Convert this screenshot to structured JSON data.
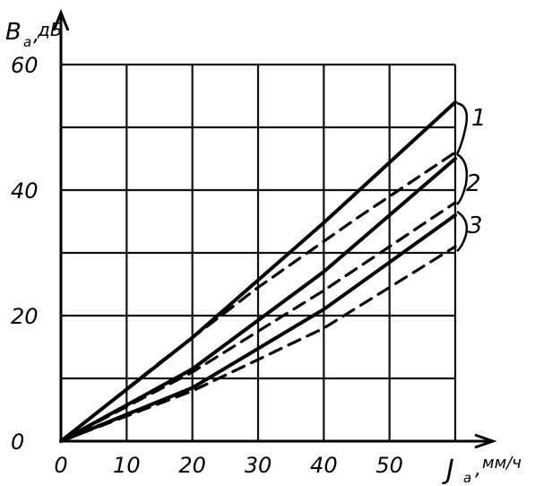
{
  "chart_data": {
    "type": "line",
    "xlabel": "J",
    "xlabel_sub": "a",
    "xunit": "мм/ч",
    "ylabel": "B",
    "ylabel_sub": "a",
    "yunit": "дБ",
    "x_ticks": [
      "0",
      "10",
      "20",
      "30",
      "40",
      "50"
    ],
    "y_ticks": [
      "0",
      "20",
      "40",
      "60"
    ],
    "xlim": [
      0,
      60
    ],
    "ylim": [
      0,
      60
    ],
    "grid": true,
    "series": [
      {
        "name": "1",
        "style": "solid",
        "x": [
          0,
          20,
          40,
          60
        ],
        "y": [
          0,
          16.5,
          34.8,
          54
        ]
      },
      {
        "name": "1",
        "style": "dashed",
        "x": [
          0,
          15,
          30,
          45,
          60
        ],
        "y": [
          0,
          12.5,
          24.5,
          35.5,
          46
        ]
      },
      {
        "name": "2",
        "style": "solid",
        "x": [
          0,
          20,
          40,
          60
        ],
        "y": [
          0,
          11.5,
          27,
          45
        ]
      },
      {
        "name": "2",
        "style": "dashed",
        "x": [
          0,
          20,
          40,
          60
        ],
        "y": [
          0,
          11,
          24,
          38
        ]
      },
      {
        "name": "3",
        "style": "solid",
        "x": [
          0,
          20,
          40,
          60
        ],
        "y": [
          0,
          8.5,
          21,
          36
        ]
      },
      {
        "name": "3",
        "style": "dashed",
        "x": [
          0,
          20,
          40,
          60
        ],
        "y": [
          0,
          8,
          18,
          31
        ]
      }
    ],
    "curve_labels": [
      "1",
      "2",
      "3"
    ]
  }
}
